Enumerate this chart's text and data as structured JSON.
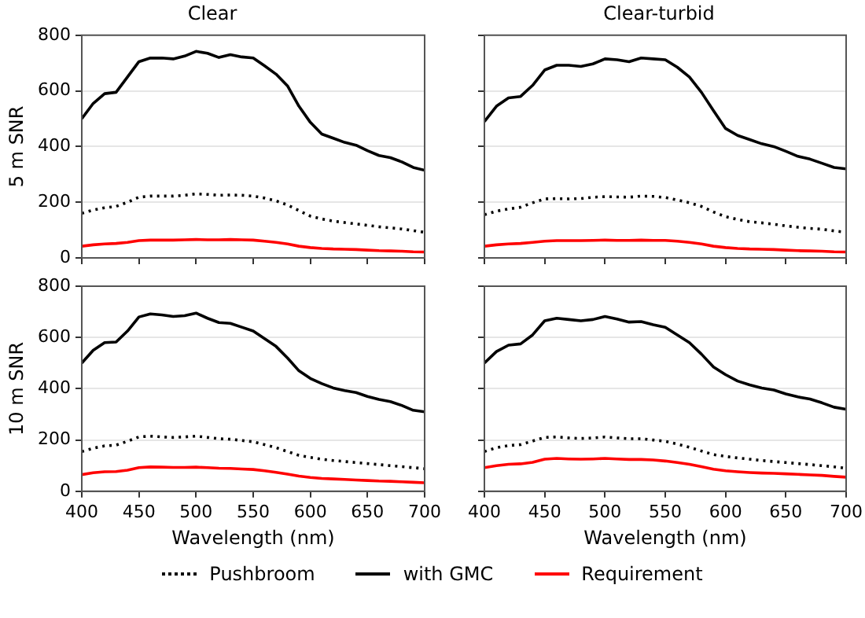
{
  "chart_data": [
    {
      "type": "line",
      "title": "Clear",
      "ylabel": "5 m SNR",
      "xlim": [
        400,
        700
      ],
      "xticks": [
        400,
        450,
        500,
        550,
        600,
        650,
        700
      ],
      "ylim": [
        0,
        800
      ],
      "yticks": [
        0,
        200,
        400,
        600,
        800
      ],
      "grid": "y",
      "tick_labels": "y",
      "legend": "bottom",
      "x": [
        400,
        410,
        420,
        430,
        440,
        450,
        460,
        470,
        480,
        490,
        500,
        510,
        520,
        530,
        540,
        550,
        560,
        570,
        580,
        590,
        600,
        610,
        620,
        630,
        640,
        650,
        660,
        670,
        680,
        690,
        700
      ],
      "series": [
        {
          "name": "Pushbroom",
          "color": "#000000",
          "line_style": "dotted",
          "values": [
            160,
            172,
            180,
            185,
            200,
            218,
            222,
            222,
            222,
            225,
            230,
            228,
            225,
            226,
            225,
            222,
            215,
            205,
            190,
            170,
            150,
            140,
            132,
            127,
            122,
            117,
            112,
            108,
            104,
            98,
            92
          ]
        },
        {
          "name": "with GMC",
          "color": "#000000",
          "values": [
            500,
            555,
            590,
            595,
            650,
            705,
            718,
            718,
            715,
            725,
            742,
            735,
            720,
            730,
            722,
            718,
            690,
            660,
            618,
            545,
            487,
            445,
            430,
            415,
            405,
            385,
            368,
            360,
            345,
            325,
            315
          ]
        },
        {
          "name": "Requirement",
          "color": "#ff0000",
          "values": [
            42,
            47,
            50,
            52,
            56,
            62,
            64,
            64,
            64,
            65,
            66,
            65,
            65,
            66,
            65,
            64,
            60,
            56,
            50,
            42,
            37,
            34,
            32,
            31,
            30,
            28,
            26,
            25,
            24,
            22,
            21
          ]
        }
      ]
    },
    {
      "type": "line",
      "title": "Clear-turbid",
      "xlim": [
        400,
        700
      ],
      "xticks": [
        400,
        450,
        500,
        550,
        600,
        650,
        700
      ],
      "ylim": [
        0,
        800
      ],
      "yticks": [
        0,
        200,
        400,
        600,
        800
      ],
      "grid": "y",
      "tick_labels": false,
      "legend": "bottom",
      "x": [
        400,
        410,
        420,
        430,
        440,
        450,
        460,
        470,
        480,
        490,
        500,
        510,
        520,
        530,
        540,
        550,
        560,
        570,
        580,
        590,
        600,
        610,
        620,
        630,
        640,
        650,
        660,
        670,
        680,
        690,
        700
      ],
      "series": [
        {
          "name": "Pushbroom",
          "color": "#000000",
          "line_style": "dotted",
          "values": [
            155,
            168,
            176,
            182,
            198,
            212,
            213,
            212,
            213,
            218,
            220,
            219,
            218,
            222,
            221,
            217,
            208,
            198,
            185,
            165,
            148,
            138,
            130,
            126,
            121,
            115,
            110,
            106,
            103,
            97,
            92
          ]
        },
        {
          "name": "with GMC",
          "color": "#000000",
          "values": [
            490,
            545,
            575,
            580,
            620,
            675,
            692,
            692,
            688,
            697,
            715,
            712,
            705,
            718,
            715,
            712,
            685,
            650,
            595,
            529,
            465,
            440,
            425,
            410,
            400,
            383,
            365,
            355,
            340,
            325,
            320
          ]
        },
        {
          "name": "Requirement",
          "color": "#ff0000",
          "values": [
            42,
            47,
            50,
            52,
            56,
            60,
            62,
            62,
            62,
            63,
            64,
            63,
            63,
            64,
            63,
            63,
            60,
            56,
            50,
            42,
            37,
            34,
            32,
            31,
            30,
            28,
            26,
            25,
            24,
            22,
            21
          ]
        }
      ]
    },
    {
      "type": "line",
      "xlabel": "Wavelength (nm)",
      "ylabel": "10 m SNR",
      "xlim": [
        400,
        700
      ],
      "xticks": [
        400,
        450,
        500,
        550,
        600,
        650,
        700
      ],
      "ylim": [
        0,
        800
      ],
      "yticks": [
        0,
        200,
        400,
        600,
        800
      ],
      "grid": "y",
      "legend": "bottom",
      "x": [
        400,
        410,
        420,
        430,
        440,
        450,
        460,
        470,
        480,
        490,
        500,
        510,
        520,
        530,
        540,
        550,
        560,
        570,
        580,
        590,
        600,
        610,
        620,
        630,
        640,
        650,
        660,
        670,
        680,
        690,
        700
      ],
      "series": [
        {
          "name": "Pushbroom",
          "color": "#000000",
          "line_style": "dotted",
          "values": [
            155,
            168,
            177,
            180,
            195,
            212,
            215,
            212,
            210,
            212,
            215,
            210,
            205,
            203,
            198,
            193,
            182,
            170,
            155,
            140,
            132,
            125,
            120,
            116,
            112,
            108,
            104,
            100,
            96,
            92,
            88
          ]
        },
        {
          "name": "with GMC",
          "color": "#000000",
          "values": [
            500,
            550,
            580,
            582,
            625,
            680,
            692,
            688,
            682,
            685,
            695,
            675,
            658,
            655,
            640,
            625,
            595,
            565,
            520,
            470,
            440,
            420,
            403,
            393,
            385,
            370,
            358,
            350,
            335,
            316,
            310
          ]
        },
        {
          "name": "Requirement",
          "color": "#ff0000",
          "values": [
            65,
            72,
            76,
            77,
            82,
            92,
            95,
            94,
            93,
            93,
            94,
            92,
            90,
            89,
            87,
            85,
            80,
            74,
            67,
            59,
            54,
            50,
            48,
            46,
            44,
            42,
            40,
            39,
            37,
            35,
            33
          ]
        }
      ]
    },
    {
      "type": "line",
      "xlabel": "Wavelength (nm)",
      "xlim": [
        400,
        700
      ],
      "xticks": [
        400,
        450,
        500,
        550,
        600,
        650,
        700
      ],
      "ylim": [
        0,
        800
      ],
      "yticks": [
        0,
        200,
        400,
        600,
        800
      ],
      "grid": "y",
      "tick_labels": "x",
      "legend": "bottom",
      "x": [
        400,
        410,
        420,
        430,
        440,
        450,
        460,
        470,
        480,
        490,
        500,
        510,
        520,
        530,
        540,
        550,
        560,
        570,
        580,
        590,
        600,
        610,
        620,
        630,
        640,
        650,
        660,
        670,
        680,
        690,
        700
      ],
      "series": [
        {
          "name": "Pushbroom",
          "color": "#000000",
          "line_style": "dotted",
          "values": [
            155,
            170,
            178,
            182,
            196,
            210,
            212,
            208,
            206,
            208,
            212,
            208,
            205,
            205,
            200,
            195,
            184,
            172,
            157,
            143,
            136,
            130,
            125,
            120,
            116,
            112,
            108,
            104,
            100,
            95,
            90
          ]
        },
        {
          "name": "with GMC",
          "color": "#000000",
          "values": [
            500,
            545,
            570,
            575,
            610,
            665,
            675,
            670,
            665,
            670,
            682,
            672,
            660,
            662,
            650,
            640,
            610,
            580,
            535,
            485,
            455,
            430,
            415,
            403,
            395,
            380,
            368,
            360,
            345,
            328,
            320
          ]
        },
        {
          "name": "Requirement",
          "color": "#ff0000",
          "values": [
            92,
            100,
            105,
            107,
            113,
            125,
            128,
            126,
            125,
            126,
            128,
            126,
            124,
            124,
            122,
            118,
            112,
            105,
            96,
            86,
            80,
            76,
            73,
            71,
            70,
            68,
            66,
            64,
            62,
            58,
            55
          ]
        }
      ]
    }
  ]
}
